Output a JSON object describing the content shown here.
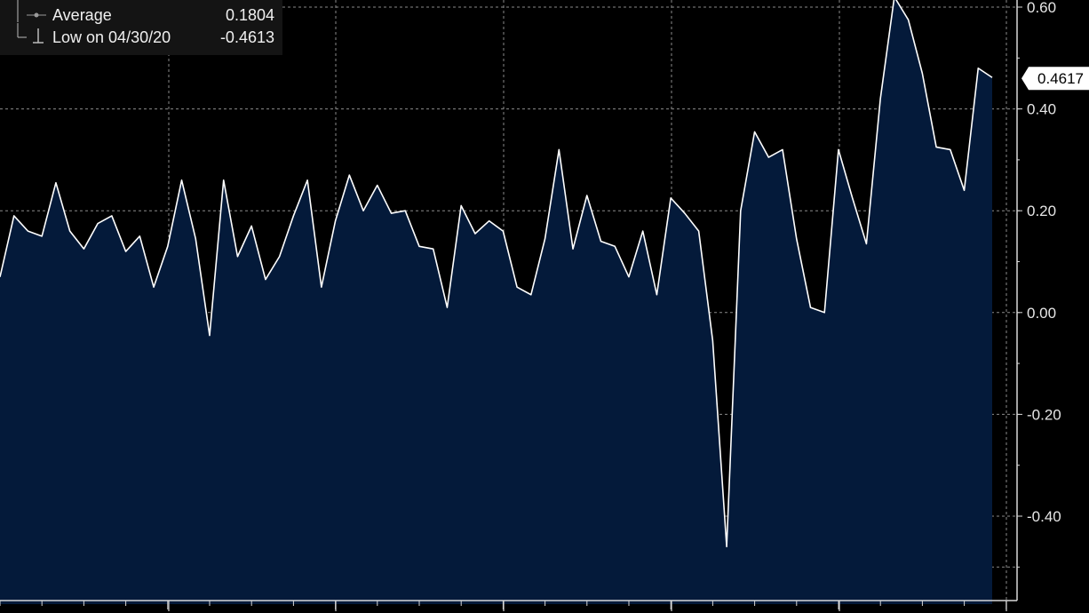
{
  "legend": {
    "items": [
      {
        "label": "Average",
        "value": "0.1804",
        "icon": "average-line-marker-icon"
      },
      {
        "label": "Low on 04/30/20",
        "value": "-0.4613",
        "icon": "low-marker-icon"
      }
    ]
  },
  "last_value_badge": "0.4617",
  "colors": {
    "background": "#000000",
    "area_fill": "#041a3a",
    "line": "#ffffff",
    "grid": "#8a8a8a",
    "legend_bg": "#141414"
  },
  "chart_data": {
    "type": "area",
    "title": "",
    "xlabel": "",
    "ylabel": "",
    "ylim": [
      -0.56,
      0.61
    ],
    "yticks": [
      0.6,
      0.4,
      0.2,
      0.0,
      -0.2,
      -0.4
    ],
    "ytick_labels": [
      "0.60",
      "0.40",
      "0.20",
      "0.00",
      "-0.20",
      "-0.40"
    ],
    "grid": true,
    "legend_position": "top-left",
    "series": [
      {
        "values": [
          0.07,
          0.19,
          0.16,
          0.15,
          0.255,
          0.16,
          0.125,
          0.175,
          0.19,
          0.12,
          0.15,
          0.05,
          0.13,
          0.26,
          0.145,
          -0.045,
          0.26,
          0.11,
          0.17,
          0.065,
          0.11,
          0.19,
          0.26,
          0.05,
          0.18,
          0.27,
          0.2,
          0.25,
          0.195,
          0.2,
          0.13,
          0.125,
          0.01,
          0.21,
          0.155,
          0.18,
          0.16,
          0.05,
          0.035,
          0.145,
          0.32,
          0.125,
          0.23,
          0.14,
          0.13,
          0.07,
          0.16,
          0.035,
          0.225,
          0.195,
          0.16,
          -0.055,
          -0.46,
          0.2,
          0.355,
          0.305,
          0.32,
          0.145,
          0.01,
          0.0,
          0.32,
          0.225,
          0.135,
          0.42,
          0.62,
          0.575,
          0.47,
          0.325,
          0.32,
          0.24,
          0.48,
          0.4617
        ]
      }
    ]
  }
}
